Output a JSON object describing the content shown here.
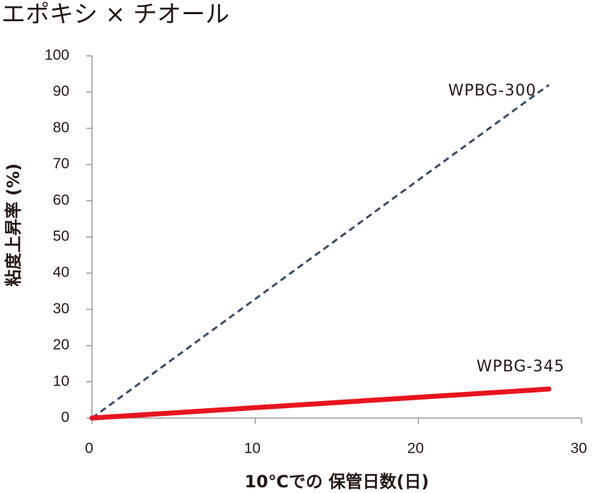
{
  "chart_data": {
    "type": "line",
    "title": "エポキシ × チオール",
    "y_label": "粘度上昇率 (%)",
    "x_label": "10℃での 保管日数(日)",
    "series": [
      {
        "name": "WPBG-300",
        "color": "#3c4a63",
        "dash": true,
        "x": [
          0,
          28
        ],
        "values": [
          0,
          92
        ]
      },
      {
        "name": "WPBG-345",
        "color": "#e8141e",
        "dash": false,
        "x": [
          0,
          28
        ],
        "values": [
          0,
          8
        ]
      }
    ],
    "xlim": [
      0,
      30
    ],
    "xticks": [
      0,
      10,
      20,
      30
    ],
    "ylim": [
      0,
      100
    ],
    "yticks": [
      0,
      10,
      20,
      30,
      40,
      50,
      60,
      70,
      80,
      90,
      100
    ]
  }
}
